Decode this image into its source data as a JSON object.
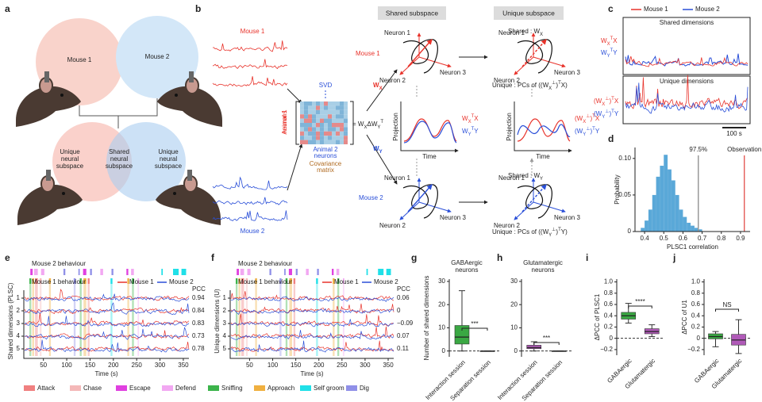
{
  "panel_labels": [
    "a",
    "b",
    "c",
    "d",
    "e",
    "f",
    "g",
    "h",
    "i",
    "j"
  ],
  "panel_a": {
    "mouse_1": "Mouse 1",
    "mouse_2": "Mouse 2",
    "unique_left": [
      "Unique",
      "neural",
      "subspace"
    ],
    "shared": [
      "Shared",
      "neural",
      "subspace"
    ],
    "unique_right": [
      "Unique",
      "neural",
      "subspace"
    ]
  },
  "panel_b": {
    "mouse_1": "Mouse 1",
    "mouse_2": "Mouse 2",
    "svd": "SVD",
    "animal_1": [
      "Animal 1",
      "neurons"
    ],
    "animal_2": [
      "Animal 2",
      "neurons"
    ],
    "covariance": [
      "Covariance",
      "matrix"
    ],
    "equation": [
      "= W",
      "X",
      "ΔW",
      "Y",
      "T"
    ],
    "wx": [
      "W",
      "X"
    ],
    "wy": [
      "W",
      "Y"
    ],
    "mouse_1_side": "Mouse 1",
    "mouse_2_side": "Mouse 2",
    "shared_header": "Shared subspace",
    "unique_header": "Unique subspace",
    "neurons": [
      "Neuron 1",
      "Neuron 2",
      "Neuron 3"
    ],
    "projection": "Projection",
    "time": "Time",
    "proj_x": [
      "W",
      "X",
      "T",
      "X"
    ],
    "proj_y": [
      "W",
      "Y",
      "T",
      "Y"
    ],
    "uproj_x": [
      "(W",
      "X",
      "⊥",
      ")",
      "T",
      "X"
    ],
    "uproj_y": [
      "(W",
      "Y",
      "⊥",
      ")",
      "T",
      "Y"
    ],
    "shared_x": [
      "Shared : W",
      "X"
    ],
    "shared_y": [
      "Shared : W",
      "Y"
    ],
    "unique_x": [
      "Unique : PCs of ((W",
      "X",
      "⊥",
      ")",
      "T",
      "X)"
    ],
    "unique_y": [
      "Unique : PCs of ((W",
      "Y",
      "⊥",
      ")",
      "T",
      "Y)"
    ]
  },
  "panel_c": {
    "legend": [
      "Mouse 1",
      "Mouse 2"
    ],
    "colors": [
      "#e8322a",
      "#2a4fd8"
    ],
    "shared": "Shared dimensions",
    "unique": "Unique dimensions",
    "scale": "100 s",
    "shared_x": [
      "W",
      "X",
      "T",
      "X"
    ],
    "shared_y": [
      "W",
      "Y",
      "T",
      "Y"
    ],
    "unique_x": [
      "(W",
      "X",
      "⊥",
      ")",
      "T",
      "X"
    ],
    "unique_y": [
      "(W",
      "Y",
      "⊥",
      ")",
      "T",
      "Y"
    ]
  },
  "panel_e": {
    "title_m2": "Mouse 2 behaviour",
    "title_m1": "Mouse 1 behaviour",
    "legend": [
      "Mouse 1",
      "Mouse 2"
    ],
    "pcc_label": "PCC",
    "pcc": [
      0.94,
      0.84,
      0.83,
      0.73,
      0.78
    ],
    "ylabel": "Shared dimensions (PLSC)",
    "yticks": [
      1,
      2,
      3,
      4,
      5
    ],
    "xlabel": "Time (s)",
    "xlim": [
      8,
      362
    ],
    "xticks": [
      50,
      100,
      150,
      200,
      250,
      300,
      350
    ]
  },
  "panel_f": {
    "title_m2": "Mouse 2 behaviour",
    "title_m1": "Mouse 1 behaviour",
    "legend": [
      "Mouse 1",
      "Mouse 2"
    ],
    "pcc_label": "PCC",
    "pcc": [
      0.06,
      0,
      -0.09,
      0.07,
      0.11
    ],
    "pcc_labels": [
      "0.06",
      "0",
      "−0.09",
      "0.07",
      "0.11"
    ],
    "ylabel": "Unique dimensions (U)",
    "yticks": [
      1,
      2,
      3,
      4,
      5
    ],
    "xlabel": "Time (s)",
    "xlim": [
      8,
      362
    ],
    "xticks": [
      50,
      100,
      150,
      200,
      250,
      300,
      350
    ]
  },
  "behaviours": {
    "names": [
      "Attack",
      "Chase",
      "Escape",
      "Defend",
      "Sniffing",
      "Approach",
      "Self groom",
      "Dig"
    ],
    "colors": [
      "#f08080",
      "#f4b8b8",
      "#e040e0",
      "#f2a8f2",
      "#3cb44b",
      "#f0b040",
      "#20e0e8",
      "#9090e8"
    ]
  },
  "behaviour_events": {
    "mouse_2": [
      {
        "t0": 22,
        "t1": 27,
        "behaviour": 2
      },
      {
        "t0": 30,
        "t1": 38,
        "behaviour": 3
      },
      {
        "t0": 45,
        "t1": 52,
        "behaviour": 3
      },
      {
        "t0": 93,
        "t1": 97,
        "behaviour": 7
      },
      {
        "t0": 125,
        "t1": 128,
        "behaviour": 7
      },
      {
        "t0": 135,
        "t1": 142,
        "behaviour": 2
      },
      {
        "t0": 150,
        "t1": 154,
        "behaviour": 7
      },
      {
        "t0": 172,
        "t1": 178,
        "behaviour": 3
      },
      {
        "t0": 196,
        "t1": 200,
        "behaviour": 7
      },
      {
        "t0": 228,
        "t1": 232,
        "behaviour": 2
      },
      {
        "t0": 238,
        "t1": 244,
        "behaviour": 3
      },
      {
        "t0": 303,
        "t1": 306,
        "behaviour": 6
      },
      {
        "t0": 328,
        "t1": 340,
        "behaviour": 6
      },
      {
        "t0": 346,
        "t1": 356,
        "behaviour": 6
      }
    ],
    "mouse_1": [
      {
        "t0": 20,
        "t1": 24,
        "behaviour": 4
      },
      {
        "t0": 26,
        "t1": 30,
        "behaviour": 5
      },
      {
        "t0": 32,
        "t1": 38,
        "behaviour": 0
      },
      {
        "t0": 42,
        "t1": 46,
        "behaviour": 1
      },
      {
        "t0": 62,
        "t1": 66,
        "behaviour": 5
      },
      {
        "t0": 115,
        "t1": 119,
        "behaviour": 7
      },
      {
        "t0": 128,
        "t1": 132,
        "behaviour": 4
      },
      {
        "t0": 136,
        "t1": 142,
        "behaviour": 5
      },
      {
        "t0": 145,
        "t1": 149,
        "behaviour": 0
      },
      {
        "t0": 194,
        "t1": 198,
        "behaviour": 6
      },
      {
        "t0": 230,
        "t1": 234,
        "behaviour": 5
      },
      {
        "t0": 240,
        "t1": 244,
        "behaviour": 4
      },
      {
        "t0": 252,
        "t1": 255,
        "behaviour": 3
      }
    ]
  },
  "chart_data": [
    {
      "type": "histogram",
      "ylabel": "Probability",
      "xlabel": "PLSC1 correlation",
      "bins": [
        0.38,
        0.4,
        0.42,
        0.44,
        0.46,
        0.48,
        0.5,
        0.52,
        0.54,
        0.56,
        0.58,
        0.6,
        0.62,
        0.64,
        0.66,
        0.68,
        0.7
      ],
      "counts": [
        0.005,
        0.015,
        0.03,
        0.05,
        0.075,
        0.09,
        0.105,
        0.085,
        0.07,
        0.05,
        0.03,
        0.02,
        0.012,
        0.008,
        0.005,
        0.003
      ],
      "color": "#5aa8d8",
      "xlim": [
        0.35,
        0.95
      ],
      "xticks": [
        0.4,
        0.5,
        0.6,
        0.7,
        0.8,
        0.9
      ],
      "ylim": [
        0,
        0.115
      ],
      "yticks": [
        0,
        0.05,
        {
          "value": 0.1,
          "label": "0.10"
        }
      ],
      "percentile_value": 0.68,
      "percentile_label": "97.5%",
      "percentile_color": "#999999",
      "observation_value": 0.92,
      "observation_label": "Observation",
      "observation_color": "#e0403a"
    },
    {
      "type": "box",
      "title": [
        "GABAergic",
        "neurons"
      ],
      "ylabel": "Number of shared dimensions",
      "categories": [
        "Interaction session",
        "Separation session"
      ],
      "colors": [
        "#3aa843",
        "#aaaaaa"
      ],
      "boxes": [
        {
          "min": 0,
          "q1": 3,
          "median": 6,
          "q3": 11,
          "max": 26
        },
        {
          "min": 0,
          "q1": 0,
          "median": 0,
          "q3": 0,
          "max": 0
        }
      ],
      "ylim": [
        -2.5,
        31
      ],
      "yticks": [
        0,
        10,
        20,
        30
      ],
      "reference_line": 0,
      "significance": "***"
    },
    {
      "type": "box",
      "title": [
        "Glutamatergic",
        "neurons"
      ],
      "categories": [
        "Interaction session",
        "Separation session"
      ],
      "colors": [
        "#b05ab8",
        "#aaaaaa"
      ],
      "boxes": [
        {
          "min": 0,
          "q1": 1,
          "median": 1.5,
          "q3": 2.5,
          "max": 4
        },
        {
          "min": 0,
          "q1": 0,
          "median": 0,
          "q3": 0,
          "max": 0
        }
      ],
      "ylim": [
        -2.5,
        31
      ],
      "yticks": [
        0,
        10,
        20,
        30
      ],
      "reference_line": 0,
      "significance": "***"
    },
    {
      "type": "box",
      "ylabel": "ΔPCC of PLSC1",
      "categories": [
        "GABAergic",
        "Glutamatergic"
      ],
      "colors": [
        "#3aa843",
        "#b05ab8"
      ],
      "boxes": [
        {
          "min": 0.27,
          "q1": 0.34,
          "median": 0.4,
          "q3": 0.46,
          "max": 0.62
        },
        {
          "min": 0.03,
          "q1": 0.08,
          "median": 0.12,
          "q3": 0.17,
          "max": 0.24
        }
      ],
      "ylim": [
        -0.3,
        1.05
      ],
      "yticks": [
        {
          "value": -0.2,
          "label": "−0.2"
        },
        0,
        0.2,
        0.4,
        0.6,
        0.8,
        {
          "value": 1,
          "label": "1.0"
        }
      ],
      "reference_line": 0,
      "significance": "****"
    },
    {
      "type": "box",
      "ylabel": "ΔPCC of U1",
      "categories": [
        "GABAergic",
        "Glutamatergic"
      ],
      "colors": [
        "#3aa843",
        "#b05ab8"
      ],
      "boxes": [
        {
          "min": -0.15,
          "q1": -0.01,
          "median": 0.03,
          "q3": 0.08,
          "max": 0.12
        },
        {
          "min": -0.27,
          "q1": -0.12,
          "median": -0.03,
          "q3": 0.07,
          "max": 0.33
        }
      ],
      "ylim": [
        -0.3,
        1.05
      ],
      "yticks": [
        {
          "value": -0.2,
          "label": "−0.2"
        },
        0,
        0.2,
        0.4,
        0.6,
        0.8,
        {
          "value": 1,
          "label": "1.0"
        }
      ],
      "reference_line": 0,
      "significance": "NS"
    }
  ]
}
